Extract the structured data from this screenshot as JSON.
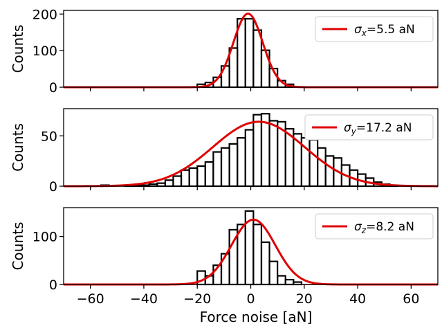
{
  "chart_data": [
    {
      "type": "bar",
      "subtype": "histogram-with-gaussian-fit",
      "ylabel": "Counts",
      "xlim": [
        -70,
        70
      ],
      "ylim": [
        0,
        210
      ],
      "yticks": [
        "0",
        "100",
        "200"
      ],
      "ytick_values": [
        0,
        100,
        200
      ],
      "bin_width": 3,
      "bin_start": -20,
      "counts": [
        8,
        13,
        27,
        58,
        107,
        187,
        187,
        156,
        101,
        51,
        18,
        8
      ],
      "fit": {
        "mu": -1,
        "sigma": 5.5,
        "amplitude": 201
      },
      "legend": {
        "sigma_symbol": "σ",
        "subscript": "x",
        "label": "=5.5 aN",
        "position": "top-right"
      }
    },
    {
      "type": "bar",
      "subtype": "histogram-with-gaussian-fit",
      "ylabel": "Counts",
      "xlim": [
        -70,
        70
      ],
      "ylim": [
        0,
        77
      ],
      "yticks": [
        "0",
        "50"
      ],
      "ytick_values": [
        0,
        50
      ],
      "bin_width": 3,
      "bin_start": -56,
      "counts": [
        1,
        0,
        0,
        1,
        1,
        1,
        2,
        3,
        6,
        10,
        16,
        18,
        20,
        24,
        34,
        38,
        42,
        48,
        56,
        71,
        72,
        65,
        64,
        57,
        52,
        48,
        46,
        38,
        30,
        28,
        21,
        16,
        12,
        8,
        4,
        2,
        1
      ],
      "fit": {
        "mu": 3,
        "sigma": 17.2,
        "amplitude": 64
      },
      "legend": {
        "sigma_symbol": "σ",
        "subscript": "y",
        "label": "=17.2 aN",
        "position": "top-right"
      }
    },
    {
      "type": "bar",
      "subtype": "histogram-with-gaussian-fit",
      "ylabel": "Counts",
      "xlim": [
        -70,
        70
      ],
      "ylim": [
        0,
        160
      ],
      "yticks": [
        "0",
        "100"
      ],
      "ytick_values": [
        0,
        100
      ],
      "bin_width": 3,
      "bin_start": -20,
      "counts": [
        28,
        18,
        40,
        64,
        114,
        125,
        153,
        125,
        88,
        48,
        18,
        10,
        5
      ],
      "fit": {
        "mu": 1,
        "sigma": 8.2,
        "amplitude": 135
      },
      "legend": {
        "sigma_symbol": "σ",
        "subscript": "z",
        "label": "=8.2 aN",
        "position": "top-right"
      }
    }
  ],
  "xaxis": {
    "label": "Force noise [aN]",
    "ticks": [
      "−60",
      "−40",
      "−20",
      "0",
      "20",
      "40",
      "60"
    ],
    "tick_values": [
      -60,
      -40,
      -20,
      0,
      20,
      40,
      60
    ]
  }
}
